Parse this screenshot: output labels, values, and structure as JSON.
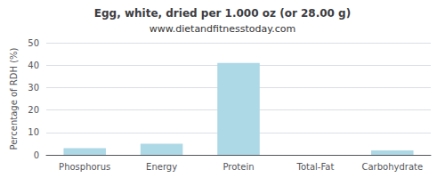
{
  "chart_data": {
    "type": "bar",
    "title": "Egg, white, dried per 1.000 oz (or 28.00 g)",
    "subtitle": "www.dietandfitnesstoday.com",
    "categories": [
      "Phosphorus",
      "Energy",
      "Protein",
      "Total-Fat",
      "Carbohydrate"
    ],
    "values": [
      3.0,
      5.0,
      41.0,
      0.0,
      2.0
    ],
    "color": "#add8e6",
    "ylabel": "Percentage of RDH (%)",
    "ylim": [
      0,
      50
    ],
    "yticks": [
      0,
      10,
      20,
      30,
      40,
      50
    ],
    "grid": true
  }
}
